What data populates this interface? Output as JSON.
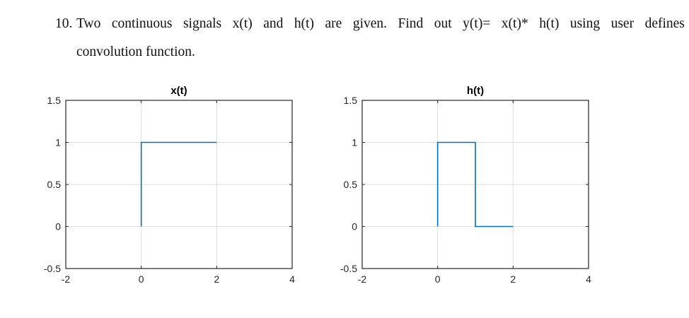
{
  "question": {
    "number": "10.",
    "words_line1": [
      "Two",
      "continuous",
      "signals",
      "x(t)",
      "and",
      "h(t)",
      "are",
      "given.",
      "Find",
      "out",
      "y(t)=",
      "x(t)*",
      "h(t)",
      "using",
      "user",
      "defines"
    ],
    "line2": "convolution function."
  },
  "chart_data": [
    {
      "type": "line",
      "title": "x(t)",
      "xlim": [
        -2,
        4
      ],
      "ylim": [
        -0.5,
        1.5
      ],
      "xticks": [
        -2,
        0,
        2,
        4
      ],
      "yticks": [
        -0.5,
        0,
        0.5,
        1,
        1.5
      ],
      "grid": true,
      "series": [
        {
          "color": "#0072BD",
          "x": [
            0,
            0,
            2
          ],
          "y": [
            0,
            1,
            1
          ]
        }
      ]
    },
    {
      "type": "line",
      "title": "h(t)",
      "xlim": [
        -2,
        4
      ],
      "ylim": [
        -0.5,
        1.5
      ],
      "xticks": [
        -2,
        0,
        2,
        4
      ],
      "yticks": [
        -0.5,
        0,
        0.5,
        1,
        1.5
      ],
      "grid": true,
      "series": [
        {
          "color": "#0072BD",
          "x": [
            0,
            0,
            1,
            1,
            2
          ],
          "y": [
            0,
            1,
            1,
            0,
            0
          ]
        }
      ]
    }
  ]
}
